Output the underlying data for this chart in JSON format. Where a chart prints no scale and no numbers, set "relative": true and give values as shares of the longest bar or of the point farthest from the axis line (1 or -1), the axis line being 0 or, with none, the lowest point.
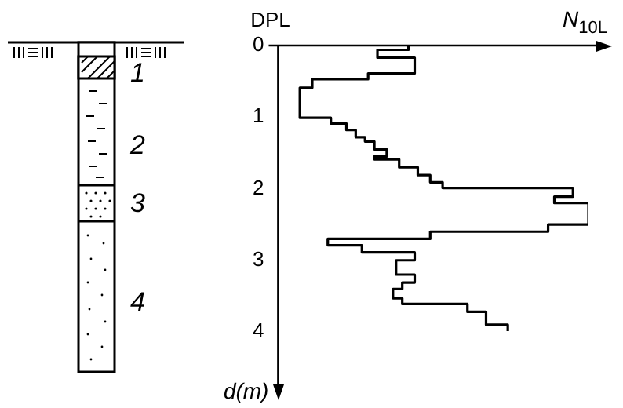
{
  "chart_data": {
    "type": "step",
    "title": "DPL",
    "xlabel": "N$_{10L}$",
    "ylabel": "d(m)",
    "relative": true,
    "orientation": "horizontal",
    "x": [
      0,
      0.06,
      0.17,
      0.39,
      0.47,
      0.59,
      1.01,
      1.09,
      1.18,
      1.28,
      1.34,
      1.45,
      1.55,
      1.59,
      1.7,
      1.81,
      1.91,
      1.99,
      2.11,
      2.2,
      2.5,
      2.6,
      2.7,
      2.79,
      2.89,
      3.0,
      3.2,
      3.31,
      3.4,
      3.53,
      3.61,
      3.72,
      3.9,
      3.99
    ],
    "values": [
      0.42,
      0.32,
      0.44,
      0.29,
      0.11,
      0.07,
      0.17,
      0.22,
      0.25,
      0.28,
      0.31,
      0.35,
      0.31,
      0.39,
      0.45,
      0.49,
      0.53,
      0.95,
      0.89,
      1,
      0.87,
      0.49,
      0.16,
      0.27,
      0.44,
      0.38,
      0.44,
      0.4,
      0.37,
      0.4,
      0.61,
      0.67,
      0.74,
      0.74
    ],
    "color": "#000000",
    "ylim": [
      4.8,
      0
    ],
    "yticks": [
      0,
      1,
      2,
      3,
      4
    ],
    "grid": false,
    "legend": false,
    "annotations": [
      "1",
      "2",
      "3",
      "4"
    ]
  }
}
